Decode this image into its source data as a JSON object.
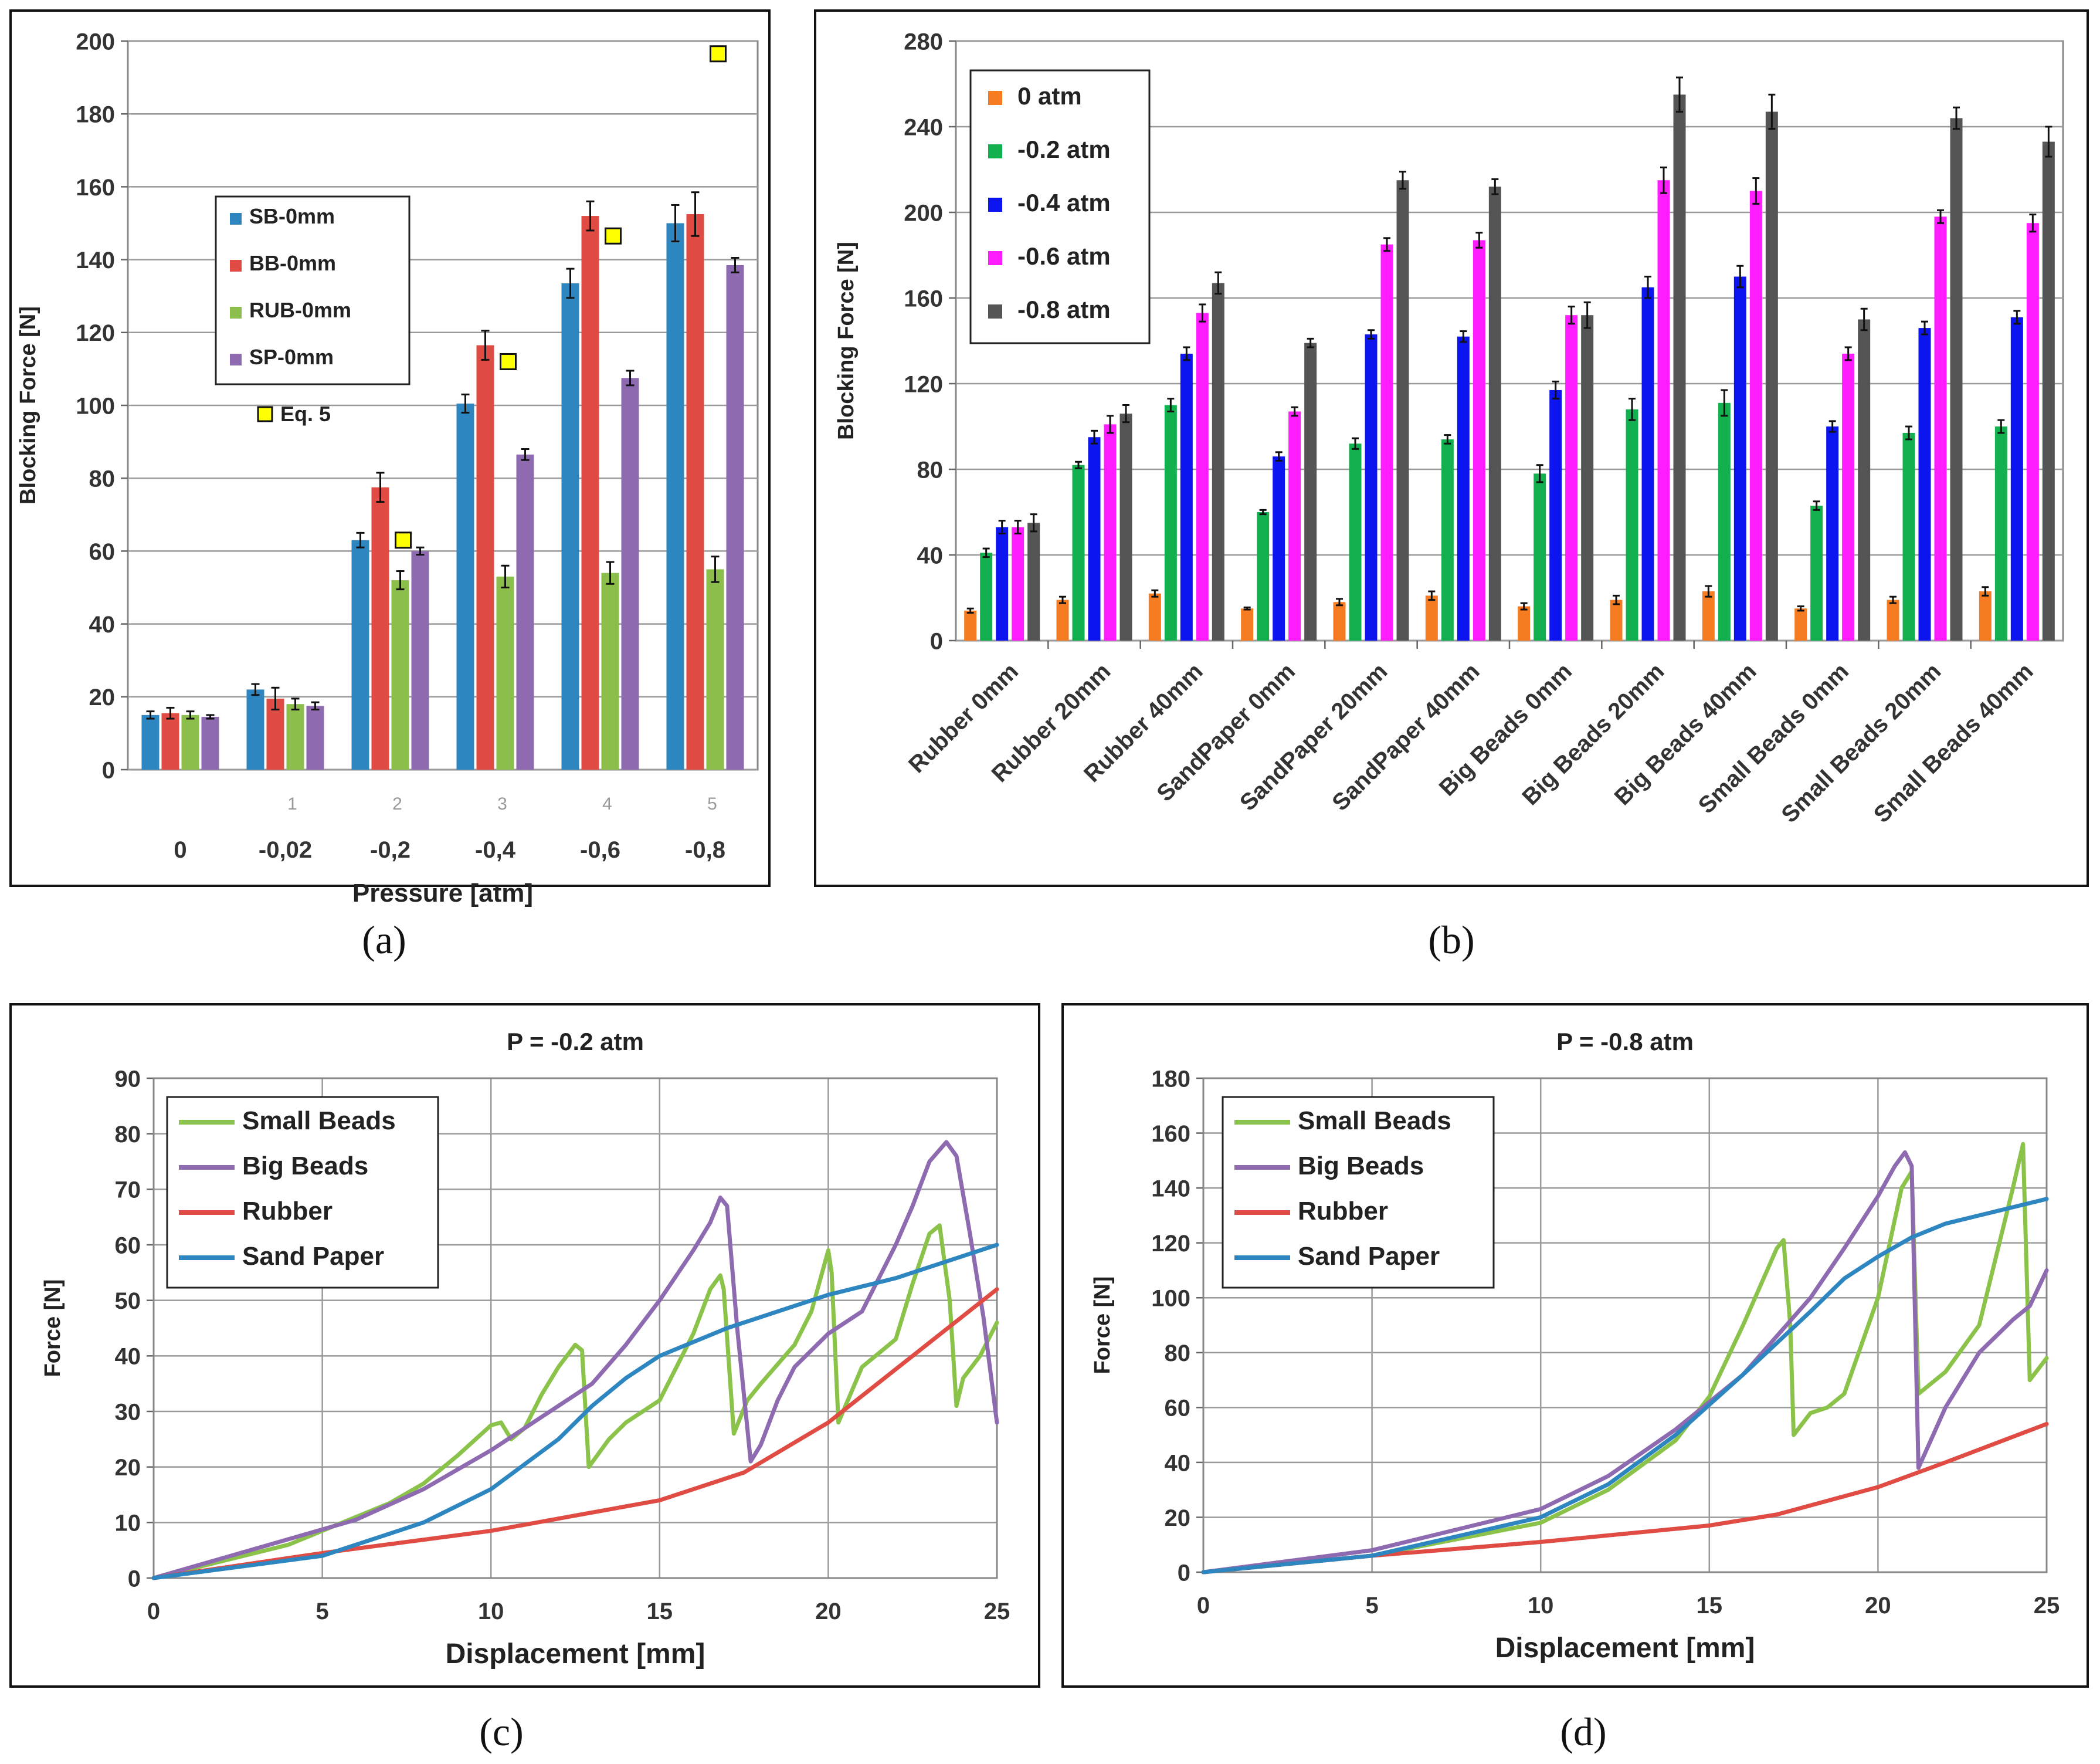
{
  "chart_data": [
    {
      "id": "a",
      "type": "bar",
      "caption": "(a)",
      "xlabel": "Pressure [atm]",
      "ylabel": "Blocking Force [N]",
      "ylim": [
        0,
        200
      ],
      "yticks": [
        0,
        20,
        40,
        60,
        80,
        100,
        120,
        140,
        160,
        180,
        200
      ],
      "categories": [
        "0",
        "-0,02",
        "-0,2",
        "-0,4",
        "-0,6",
        "-0,8"
      ],
      "ghost_ticks": [
        "1",
        "2",
        "3",
        "4",
        "5"
      ],
      "series": [
        {
          "name": "SB-0mm",
          "color": "#2E86C1",
          "values": [
            15,
            22,
            63,
            100.5,
            133.5,
            150
          ],
          "errors": [
            1,
            1.5,
            2,
            2.5,
            4,
            5
          ]
        },
        {
          "name": "BB-0mm",
          "color": "#E04B43",
          "values": [
            15.5,
            19.5,
            77.5,
            116.5,
            152,
            152.5
          ],
          "errors": [
            1.5,
            3,
            4,
            4,
            4,
            6
          ]
        },
        {
          "name": "RUB-0mm",
          "color": "#8BBE4B",
          "values": [
            15,
            18,
            52,
            53,
            54,
            55
          ],
          "errors": [
            1,
            1.5,
            2.5,
            3,
            3,
            3.5
          ]
        },
        {
          "name": "SP-0mm",
          "color": "#8E6BB0",
          "values": [
            14.5,
            17.5,
            60,
            86.5,
            107.5,
            138.5
          ],
          "errors": [
            0.5,
            1,
            1,
            1.5,
            2,
            2
          ]
        }
      ],
      "eq5": {
        "name": "Eq. 5",
        "color": "#FFFF00",
        "points": [
          [
            2,
            63
          ],
          [
            3,
            112
          ],
          [
            4,
            146.5
          ],
          [
            5,
            196.5
          ]
        ]
      }
    },
    {
      "id": "b",
      "type": "bar",
      "caption": "(b)",
      "xlabel": "",
      "ylabel": "Blocking Force [N]",
      "ylim": [
        0,
        280
      ],
      "yticks": [
        0,
        40,
        80,
        120,
        160,
        200,
        240,
        280
      ],
      "categories": [
        "Rubber 0mm",
        "Rubber 20mm",
        "Rubber 40mm",
        "SandPaper 0mm",
        "SandPaper 20mm",
        "SandPaper 40mm",
        "Big Beads 0mm",
        "Big Beads 20mm",
        "Big Beads 40mm",
        "Small Beads 0mm",
        "Small Beads 20mm",
        "Small Beads 40mm"
      ],
      "series": [
        {
          "name": "0 atm",
          "color": "#F57C20",
          "values": [
            14,
            19,
            22,
            15,
            18,
            21,
            16,
            19,
            23,
            15,
            19,
            23
          ],
          "errors": [
            1,
            1.5,
            1.5,
            0.5,
            1.5,
            2,
            1.5,
            2,
            2.5,
            1,
            1.5,
            2
          ]
        },
        {
          "name": "-0.2 atm",
          "color": "#12B04F",
          "values": [
            41,
            82,
            110,
            60,
            92,
            94,
            78,
            108,
            111,
            63,
            97,
            100
          ],
          "errors": [
            2,
            1.5,
            3,
            1,
            2.5,
            2,
            4,
            5,
            6,
            2,
            3,
            3
          ]
        },
        {
          "name": "-0.4 atm",
          "color": "#0C14F0",
          "values": [
            53,
            95,
            134,
            86,
            143,
            142,
            117,
            165,
            170,
            100,
            146,
            151
          ],
          "errors": [
            3,
            3,
            3,
            2,
            2,
            2.5,
            4,
            5,
            5,
            2.5,
            3,
            3
          ]
        },
        {
          "name": "-0.6 atm",
          "color": "#FF1CFF",
          "values": [
            53,
            101,
            153,
            107,
            185,
            187,
            152,
            215,
            210,
            134,
            198,
            195
          ],
          "errors": [
            3,
            4,
            4,
            2,
            3,
            3.5,
            4,
            6,
            6,
            3,
            3,
            4
          ]
        },
        {
          "name": "-0.8 atm",
          "color": "#555555",
          "values": [
            55,
            106,
            167,
            139,
            215,
            212,
            152,
            255,
            247,
            150,
            244,
            233
          ],
          "errors": [
            4,
            4,
            5,
            2,
            4,
            3.5,
            6,
            8,
            8,
            5,
            5,
            7
          ]
        }
      ]
    },
    {
      "id": "c",
      "type": "line",
      "caption": "(c)",
      "title": "P = -0.2 atm",
      "xlabel": "Displacement [mm]",
      "ylabel": "Force [N]",
      "xlim": [
        0,
        25
      ],
      "ylim": [
        0,
        90
      ],
      "xticks": [
        0,
        5,
        10,
        15,
        20,
        25
      ],
      "yticks": [
        0,
        10,
        20,
        30,
        40,
        50,
        60,
        70,
        80,
        90
      ],
      "series": [
        {
          "name": "Small Beads",
          "color": "#8BC34A",
          "x": [
            0,
            2,
            4,
            6,
            7,
            8,
            9,
            10,
            10.3,
            10.6,
            11,
            11.5,
            12,
            12.5,
            12.7,
            12.9,
            13.5,
            14,
            15,
            15.5,
            16,
            16.5,
            16.8,
            16.9,
            17.2,
            17.6,
            18,
            19,
            19.5,
            20,
            20.1,
            20.3,
            21,
            22,
            22.5,
            23,
            23.3,
            23.6,
            23.8,
            24,
            24.5,
            25
          ],
          "y": [
            0,
            3,
            6,
            11,
            13.5,
            17,
            22,
            27.5,
            28,
            25,
            27,
            33,
            38,
            42,
            41,
            20,
            25,
            28,
            32,
            38,
            44,
            52,
            54.5,
            52,
            26,
            32,
            35,
            42,
            48,
            59,
            55,
            28,
            38,
            43,
            53,
            62,
            63.5,
            50,
            31,
            36,
            40,
            46
          ]
        },
        {
          "name": "Big Beads",
          "color": "#8E6BB0",
          "x": [
            0,
            2,
            4,
            6,
            8,
            10,
            11,
            12,
            13,
            14,
            15,
            16,
            16.5,
            16.8,
            17,
            17.3,
            17.7,
            18,
            18.5,
            19,
            20,
            21,
            22,
            22.5,
            23,
            23.5,
            23.8,
            24.2,
            24.6,
            25
          ],
          "y": [
            0,
            3.5,
            7,
            10.5,
            16,
            23,
            27,
            31,
            35,
            42,
            50,
            59,
            64,
            68.5,
            67,
            45,
            21,
            24,
            32,
            38,
            44,
            48,
            60,
            67,
            75,
            78.5,
            76,
            62,
            47,
            28
          ]
        },
        {
          "name": "Rubber",
          "color": "#E04B43",
          "x": [
            0,
            5,
            10,
            15,
            17.5,
            20,
            22.5,
            25
          ],
          "y": [
            0,
            4.5,
            8.5,
            14,
            19,
            28,
            40,
            52
          ]
        },
        {
          "name": "Sand Paper",
          "color": "#2E86C1",
          "x": [
            0,
            5,
            8,
            10,
            12,
            13,
            14,
            15,
            17,
            20,
            22,
            24,
            25
          ],
          "y": [
            0,
            4,
            10,
            16,
            25,
            31,
            36,
            40,
            45,
            51,
            54,
            58,
            60
          ]
        }
      ]
    },
    {
      "id": "d",
      "type": "line",
      "caption": "(d)",
      "title": "P = -0.8 atm",
      "xlabel": "Displacement [mm]",
      "ylabel": "Force [N]",
      "xlim": [
        0,
        25
      ],
      "ylim": [
        0,
        180
      ],
      "xticks": [
        0,
        5,
        10,
        15,
        20,
        25
      ],
      "yticks": [
        0,
        20,
        40,
        60,
        80,
        100,
        120,
        140,
        160,
        180
      ],
      "series": [
        {
          "name": "Small Beads",
          "color": "#8BC34A",
          "x": [
            0,
            5,
            10,
            12,
            14,
            15,
            16,
            17,
            17.2,
            17.4,
            17.5,
            18,
            18.5,
            19,
            20,
            20.7,
            21,
            21.2,
            22,
            23,
            24,
            24.3,
            24.5,
            25
          ],
          "y": [
            0,
            6,
            18,
            30,
            48,
            64,
            90,
            118,
            121,
            90,
            50,
            58,
            60,
            65,
            100,
            140,
            146,
            65,
            73,
            90,
            140,
            156,
            70,
            78
          ]
        },
        {
          "name": "Big Beads",
          "color": "#8E6BB0",
          "x": [
            0,
            5,
            10,
            12,
            14,
            16,
            18,
            19,
            20,
            20.5,
            20.8,
            21,
            21.2,
            22,
            23,
            24,
            24.5,
            25
          ],
          "y": [
            0,
            8,
            23,
            35,
            52,
            72,
            100,
            118,
            137,
            148,
            153,
            148,
            38,
            60,
            80,
            92,
            97,
            110
          ]
        },
        {
          "name": "Rubber",
          "color": "#E04B43",
          "x": [
            0,
            5,
            10,
            15,
            17,
            20,
            22,
            25
          ],
          "y": [
            0,
            6,
            11,
            17,
            21,
            31,
            40,
            54
          ]
        },
        {
          "name": "Sand Paper",
          "color": "#2E86C1",
          "x": [
            0,
            5,
            10,
            12,
            14,
            16,
            18,
            19,
            20,
            21,
            22,
            23,
            24,
            25
          ],
          "y": [
            0,
            6,
            20,
            32,
            50,
            72,
            95,
            107,
            115,
            122,
            127,
            130,
            133,
            136
          ]
        }
      ]
    }
  ]
}
